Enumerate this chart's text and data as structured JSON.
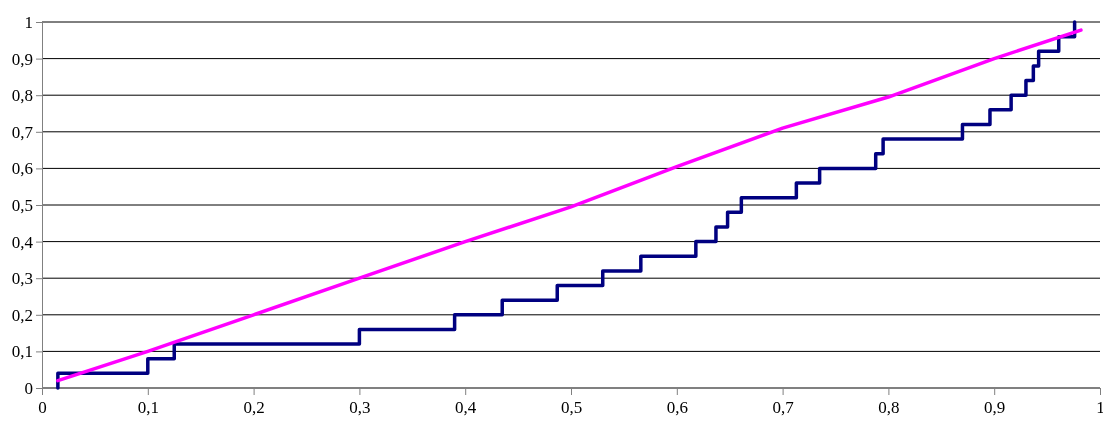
{
  "chart_data": {
    "type": "line",
    "xlim": [
      0,
      1
    ],
    "ylim": [
      0,
      1
    ],
    "xticks": [
      0,
      {
        "value": 0.1,
        "label": "0,1"
      },
      {
        "value": 0.2,
        "label": "0,2"
      },
      {
        "value": 0.3,
        "label": "0,3"
      },
      {
        "value": 0.4,
        "label": "0,4"
      },
      {
        "value": 0.5,
        "label": "0,5"
      },
      {
        "value": 0.6,
        "label": "0,6"
      },
      {
        "value": 0.7,
        "label": "0,7"
      },
      {
        "value": 0.8,
        "label": "0,8"
      },
      {
        "value": 0.9,
        "label": "0,9"
      },
      1
    ],
    "yticks": [
      0,
      {
        "value": 0.1,
        "label": "0,1"
      },
      {
        "value": 0.2,
        "label": "0,2"
      },
      {
        "value": 0.3,
        "label": "0,3"
      },
      {
        "value": 0.4,
        "label": "0,4"
      },
      {
        "value": 0.5,
        "label": "0,5"
      },
      {
        "value": 0.6,
        "label": "0,6"
      },
      {
        "value": 0.7,
        "label": "0,7"
      },
      {
        "value": 0.8,
        "label": "0,8"
      },
      {
        "value": 0.9,
        "label": "0,9"
      },
      1
    ],
    "grid": "y",
    "marker": "none",
    "line_style": "solid",
    "series": [
      {
        "type": "step",
        "color": "#000080",
        "x": [
          0.015,
          0.015,
          0.1,
          0.125,
          0.3,
          0.39,
          0.435,
          0.487,
          0.53,
          0.566,
          0.618,
          0.637,
          0.648,
          0.661,
          0.713,
          0.735,
          0.788,
          0.795,
          0.87,
          0.896,
          0.916,
          0.93,
          0.937,
          0.942,
          0.961,
          0.976
        ],
        "values": [
          0,
          0.04,
          0.08,
          0.12,
          0.16,
          0.2,
          0.24,
          0.28,
          0.32,
          0.36,
          0.4,
          0.44,
          0.48,
          0.52,
          0.56,
          0.6,
          0.64,
          0.68,
          0.72,
          0.76,
          0.8,
          0.84,
          0.88,
          0.92,
          0.96,
          1
        ]
      },
      {
        "color": "#ff00ff",
        "x": [
          0.015,
          0.1,
          0.2,
          0.3,
          0.4,
          0.5,
          0.6,
          0.7,
          0.8,
          0.9,
          0.982
        ],
        "values": [
          0.02,
          0.1,
          0.2,
          0.3,
          0.4,
          0.495,
          0.605,
          0.71,
          0.795,
          0.9,
          0.978
        ]
      }
    ]
  }
}
